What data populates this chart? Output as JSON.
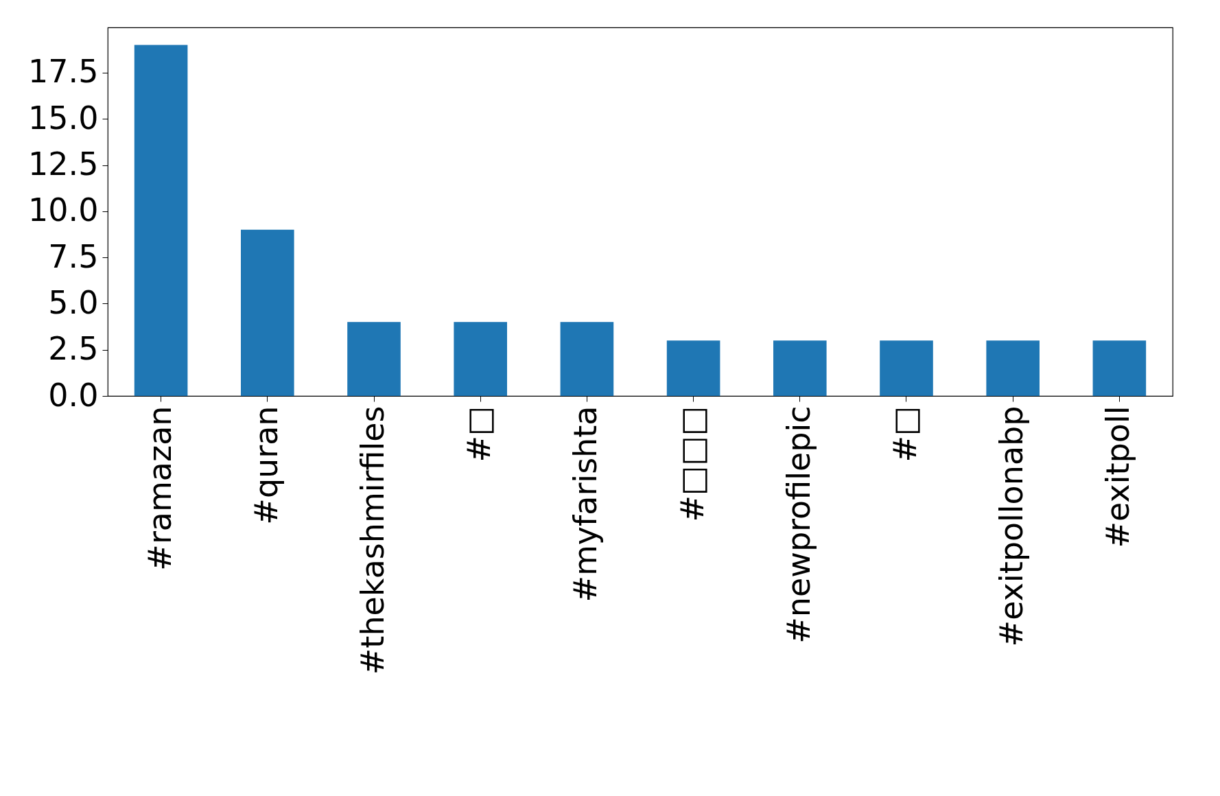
{
  "chart_data": {
    "type": "bar",
    "categories": [
      "#ramazan",
      "#quran",
      "#thekashmirfiles",
      "#□",
      "#myfarishta",
      "#□□□",
      "#newprofilepic",
      "#□",
      "#exitpollonabp",
      "#exitpoll"
    ],
    "values": [
      19,
      9,
      4,
      4,
      4,
      3,
      3,
      3,
      3,
      3
    ],
    "color": "#1f77b4",
    "ylim": [
      0,
      19.95
    ],
    "yticks": [
      {
        "value": 0,
        "label": "0.0"
      },
      2.5,
      {
        "value": 5,
        "label": "5.0"
      },
      7.5,
      {
        "value": 10,
        "label": "10.0"
      },
      12.5,
      {
        "value": 15,
        "label": "15.0"
      },
      17.5
    ],
    "grid": false
  }
}
